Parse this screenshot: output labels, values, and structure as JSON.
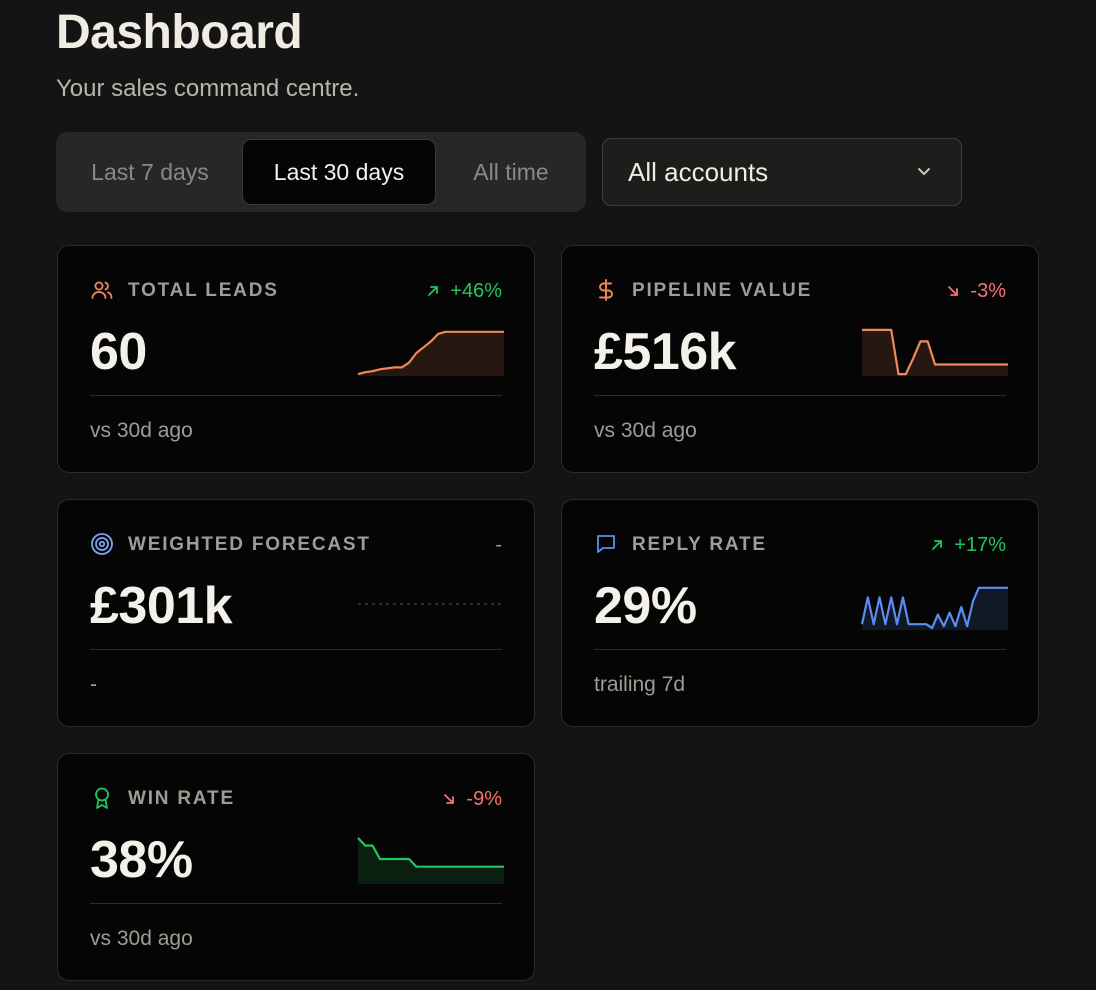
{
  "header": {
    "title": "Dashboard",
    "subtitle": "Your sales command centre."
  },
  "range_tabs": {
    "options": [
      "Last 7 days",
      "Last 30 days",
      "All time"
    ],
    "selected": "Last 30 days"
  },
  "account_filter": {
    "value": "All accounts",
    "icon": "chevron-down-icon"
  },
  "colors": {
    "positive": "#22c55e",
    "negative": "#f87171",
    "leads_accent": "#f0885a",
    "pipeline_accent": "#f0885a",
    "forecast_accent": "#7ea3f5",
    "reply_accent": "#5b8def",
    "win_accent": "#22c55e"
  },
  "cards": [
    {
      "id": "total-leads",
      "icon": "users-icon",
      "label": "TOTAL LEADS",
      "delta": "+46%",
      "trend": "up",
      "value": "60",
      "footnote": "vs 30d ago",
      "sparkline": [
        2,
        4,
        5,
        7,
        8,
        9,
        9,
        14,
        24,
        30,
        36,
        44,
        46,
        46,
        46,
        46,
        46,
        46,
        46,
        46,
        46
      ]
    },
    {
      "id": "pipeline-value",
      "icon": "dollar-icon",
      "label": "PIPELINE VALUE",
      "delta": "-3%",
      "trend": "down",
      "value": "£516k",
      "footnote": "vs 30d ago",
      "sparkline": [
        48,
        48,
        48,
        48,
        48,
        2,
        2,
        18,
        36,
        36,
        12,
        12,
        12,
        12,
        12,
        12,
        12,
        12,
        12,
        12,
        12
      ]
    },
    {
      "id": "weighted-forecast",
      "icon": "target-icon",
      "label": "WEIGHTED FORECAST",
      "delta": "-",
      "trend": "none",
      "value": "£301k",
      "footnote": "-",
      "sparkline": []
    },
    {
      "id": "reply-rate",
      "icon": "message-square-icon",
      "label": "REPLY RATE",
      "delta": "+17%",
      "trend": "up",
      "value": "29%",
      "footnote": "trailing 7d",
      "sparkline": [
        6,
        34,
        6,
        34,
        6,
        34,
        6,
        34,
        6,
        6,
        6,
        6,
        2,
        16,
        4,
        18,
        4,
        24,
        4,
        30,
        44,
        44,
        44,
        44,
        44,
        44
      ]
    },
    {
      "id": "win-rate",
      "icon": "award-icon",
      "label": "WIN RATE",
      "delta": "-9%",
      "trend": "down",
      "value": "38%",
      "footnote": "vs 30d ago",
      "sparkline": [
        48,
        40,
        40,
        26,
        26,
        26,
        26,
        26,
        18,
        18,
        18,
        18,
        18,
        18,
        18,
        18,
        18,
        18,
        18,
        18,
        18
      ]
    }
  ]
}
